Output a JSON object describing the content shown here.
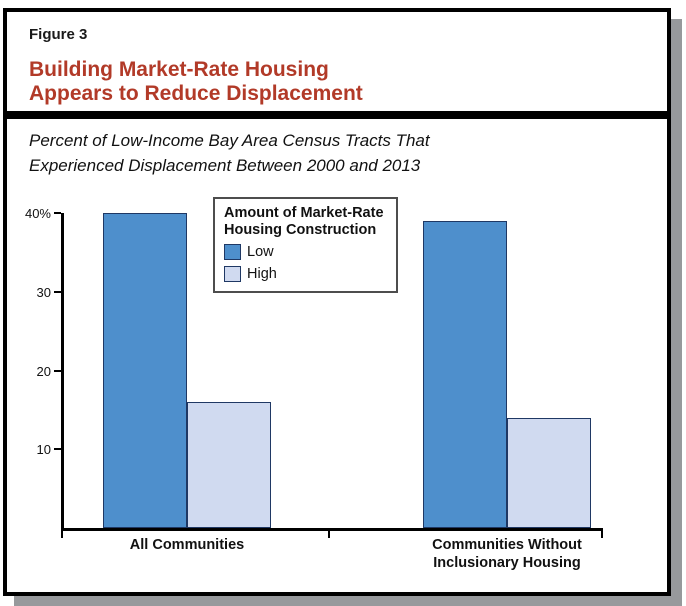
{
  "figure": {
    "label": "Figure 3",
    "title_line1": "Building Market-Rate Housing",
    "title_line2": "Appears to Reduce Displacement",
    "subtitle_line1": "Percent of Low-Income Bay Area Census Tracts That",
    "subtitle_line2": "Experienced Displacement Between 2000 and 2013"
  },
  "colors": {
    "title_red": "#B23A28",
    "bar_low_blue": "#4E8FCC",
    "bar_high_light": "#D0DAF0",
    "bar_border": "#1F3864",
    "axis_black": "#000000",
    "shadow_gray": "#97999C"
  },
  "legend": {
    "title_line1": "Amount of Market-Rate",
    "title_line2": "Housing Construction",
    "items": [
      {
        "label": "Low",
        "color": "#4E8FCC"
      },
      {
        "label": "High",
        "color": "#D0DAF0"
      }
    ]
  },
  "chart_data": {
    "type": "bar",
    "title": "Percent of Low-Income Bay Area Census Tracts That Experienced Displacement Between 2000 and 2013",
    "categories": [
      "All Communities",
      "Communities Without Inclusionary Housing"
    ],
    "category_label_lines": [
      [
        "All Communities"
      ],
      [
        "Communities Without",
        "Inclusionary Housing"
      ]
    ],
    "series": [
      {
        "name": "Low",
        "values": [
          40,
          39
        ],
        "color": "#4E8FCC"
      },
      {
        "name": "High",
        "values": [
          16,
          14
        ],
        "color": "#D0DAF0"
      }
    ],
    "xlabel": "",
    "ylabel": "Percent",
    "ylim": [
      0,
      40
    ],
    "y_ticks": [
      {
        "value": 40,
        "label": "40%"
      },
      {
        "value": 30,
        "label": "30"
      },
      {
        "value": 20,
        "label": "20"
      },
      {
        "value": 10,
        "label": "10"
      }
    ],
    "grid": false,
    "legend_position": "inside-top-center",
    "legend_title": "Amount of Market-Rate Housing Construction"
  }
}
